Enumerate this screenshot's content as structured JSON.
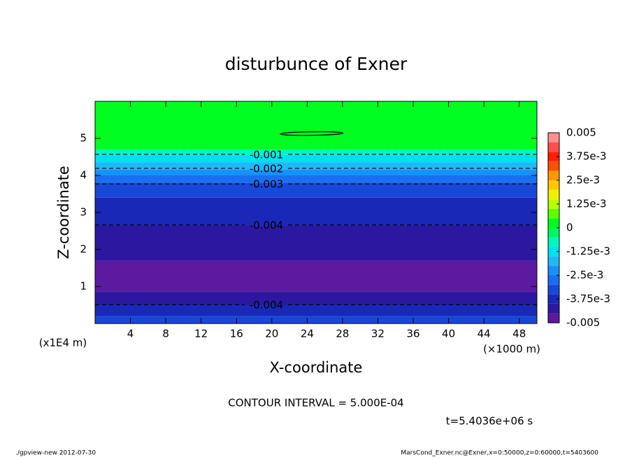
{
  "chart_data": {
    "type": "contour",
    "title": "disturbunce of Exner",
    "xlabel": "X-coordinate",
    "ylabel": "Z-coordinate",
    "xunit": "(×1000 m)",
    "yunit": "(x1E4 m)",
    "xlim": [
      0,
      50
    ],
    "ylim": [
      0,
      6
    ],
    "xticks": [
      4,
      8,
      12,
      16,
      20,
      24,
      28,
      32,
      36,
      40,
      44,
      48
    ],
    "yticks": [
      1,
      2,
      3,
      4,
      5
    ],
    "field": {
      "z_edges": [
        0,
        0.2,
        0.5,
        0.85,
        1.7,
        2.65,
        3.4,
        3.8,
        4.0,
        4.15,
        4.35,
        4.55,
        4.7,
        6
      ],
      "values": [
        -0.0032,
        -0.0037,
        -0.0042,
        -0.0047,
        -0.0042,
        -0.0037,
        -0.0032,
        -0.0027,
        -0.0022,
        -0.0017,
        -0.0012,
        -0.0007,
        0.0002
      ]
    },
    "contour_lines": [
      {
        "value": -0.001,
        "z": 4.57
      },
      {
        "value": -0.002,
        "z": 4.19
      },
      {
        "value": -0.003,
        "z": 3.77
      },
      {
        "value": -0.004,
        "z": 2.66
      },
      {
        "value": -0.004,
        "z": 0.51
      }
    ],
    "colorbar": {
      "lim": [
        -0.005,
        0.005
      ],
      "colors": [
        "#5c1aa0",
        "#2c18a0",
        "#1a28b8",
        "#1848d8",
        "#1870f0",
        "#1890f8",
        "#20b8f8",
        "#00e0f0",
        "#00f8c0",
        "#00f860",
        "#00ff20",
        "#60ff00",
        "#b8ff00",
        "#f0f000",
        "#ffc800",
        "#ff9800",
        "#ff5000",
        "#ff2000",
        "#ff5050",
        "#ff9090"
      ],
      "ticks": [
        0.005,
        {
          "value": 0.00375,
          "label": "3.75e-3"
        },
        {
          "value": 0.0025,
          "label": "2.5e-3"
        },
        {
          "value": 0.00125,
          "label": "1.25e-3"
        },
        0,
        {
          "value": -0.00125,
          "label": "-1.25e-3"
        },
        {
          "value": -0.0025,
          "label": "-2.5e-3"
        },
        {
          "value": -0.00375,
          "label": "-3.75e-3"
        },
        -0.005
      ]
    },
    "contour_interval": "CONTOUR INTERVAL = 5.000E-04",
    "time_label": "t=5.4036e+06 s",
    "footer_left": "./gpview-new  2012-07-30",
    "footer_right": "MarsCond_Exner.nc@Exner,x=0:50000,z=0:60000,t=5403600"
  }
}
